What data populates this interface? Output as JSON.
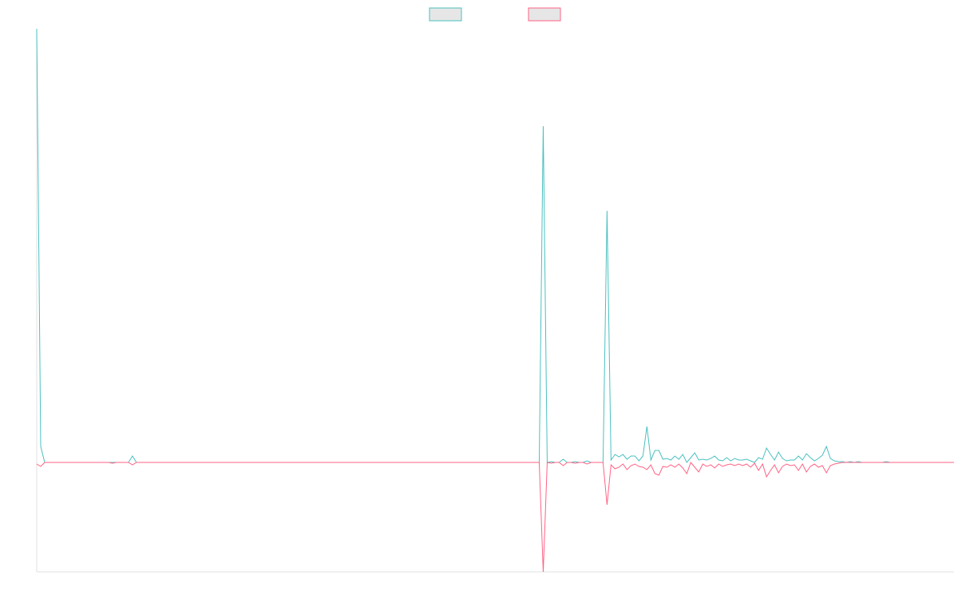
{
  "chart_data": {
    "type": "line",
    "ylim": [
      -137,
      543
    ],
    "grid": false,
    "legend": "top",
    "series": [
      {
        "color": "#4bc0c0",
        "values": [
          543,
          20,
          0,
          0,
          0,
          0,
          0,
          0,
          0,
          0,
          0,
          0,
          0,
          0,
          0,
          0,
          0,
          0,
          0,
          0,
          0,
          0,
          0,
          0,
          8,
          0,
          0,
          0,
          0,
          0,
          0,
          0,
          0,
          0,
          0,
          0,
          0,
          0,
          0,
          0,
          0,
          0,
          0,
          0,
          0,
          0,
          0,
          0,
          0,
          0,
          0,
          0,
          0,
          0,
          0,
          0,
          0,
          0,
          0,
          0,
          0,
          0,
          0,
          0,
          0,
          0,
          0,
          0,
          0,
          0,
          0,
          0,
          0,
          0,
          0,
          0,
          0,
          0,
          0,
          0,
          0,
          0,
          0,
          0,
          0,
          0,
          0,
          0,
          0,
          0,
          0,
          0,
          0,
          0,
          0,
          0,
          0,
          0,
          0,
          0,
          0,
          0,
          0,
          0,
          0,
          0,
          0,
          0,
          0,
          0,
          0,
          0,
          0,
          0,
          0,
          0,
          0,
          0,
          0,
          0,
          0,
          0,
          0,
          0,
          0,
          0,
          0,
          421,
          0,
          1,
          0,
          0,
          4,
          0,
          0,
          1,
          0,
          0,
          2,
          0,
          0,
          0,
          0,
          315,
          3,
          10,
          7,
          10,
          4,
          8,
          8,
          2,
          8,
          45,
          3,
          15,
          15,
          4,
          5,
          3,
          8,
          4,
          10,
          0,
          6,
          12,
          3,
          4,
          3,
          5,
          8,
          3,
          2,
          6,
          2,
          5,
          3,
          3,
          4,
          2,
          0,
          6,
          4,
          18,
          10,
          3,
          13,
          5,
          2,
          3,
          3,
          8,
          3,
          11,
          6,
          2,
          5,
          9,
          20,
          5,
          2,
          1,
          1,
          0,
          1,
          0,
          1,
          0,
          0,
          0,
          0,
          0,
          0,
          1,
          0,
          0,
          0,
          0,
          0,
          0,
          0,
          0,
          0,
          0,
          0,
          0,
          0,
          0,
          0,
          0,
          0
        ]
      },
      {
        "color": "#ff6384",
        "values": [
          -2,
          -5,
          0,
          0,
          0,
          0,
          0,
          0,
          0,
          0,
          0,
          0,
          0,
          0,
          0,
          0,
          0,
          0,
          0,
          -1,
          0,
          0,
          0,
          0,
          -3,
          0,
          0,
          0,
          0,
          0,
          0,
          0,
          0,
          0,
          0,
          0,
          0,
          0,
          0,
          0,
          0,
          0,
          0,
          0,
          0,
          0,
          0,
          0,
          0,
          0,
          0,
          0,
          0,
          0,
          0,
          0,
          0,
          0,
          0,
          0,
          0,
          0,
          0,
          0,
          0,
          0,
          0,
          0,
          0,
          0,
          0,
          0,
          0,
          0,
          0,
          0,
          0,
          0,
          0,
          0,
          0,
          0,
          0,
          0,
          0,
          0,
          0,
          0,
          0,
          0,
          0,
          0,
          0,
          0,
          0,
          0,
          0,
          0,
          0,
          0,
          0,
          0,
          0,
          0,
          0,
          0,
          0,
          0,
          0,
          0,
          0,
          0,
          0,
          0,
          0,
          0,
          0,
          0,
          0,
          0,
          0,
          0,
          0,
          0,
          0,
          0,
          0,
          -137,
          0,
          -1,
          0,
          0,
          -4,
          0,
          0,
          -1,
          0,
          0,
          -2,
          0,
          0,
          0,
          0,
          -53,
          -3,
          -8,
          -6,
          -2,
          -9,
          -4,
          -2,
          -5,
          -6,
          -9,
          -3,
          -14,
          -16,
          -5,
          -6,
          -3,
          -6,
          -2,
          -7,
          -14,
          0,
          -6,
          -12,
          -2,
          -5,
          -3,
          -7,
          -2,
          -5,
          -3,
          -2,
          -4,
          -2,
          -4,
          -2,
          -6,
          -1,
          -10,
          -2,
          -18,
          -10,
          -3,
          -13,
          -5,
          -2,
          -4,
          -3,
          -10,
          -2,
          -12,
          -5,
          -2,
          -6,
          -4,
          -13,
          -4,
          -2,
          -1,
          0,
          0,
          0,
          0,
          0,
          0,
          0,
          0,
          0,
          0,
          0,
          0,
          0,
          0,
          0,
          0,
          0,
          0,
          0,
          0,
          0,
          0,
          0,
          0,
          0,
          0,
          0,
          0,
          0
        ]
      }
    ]
  }
}
